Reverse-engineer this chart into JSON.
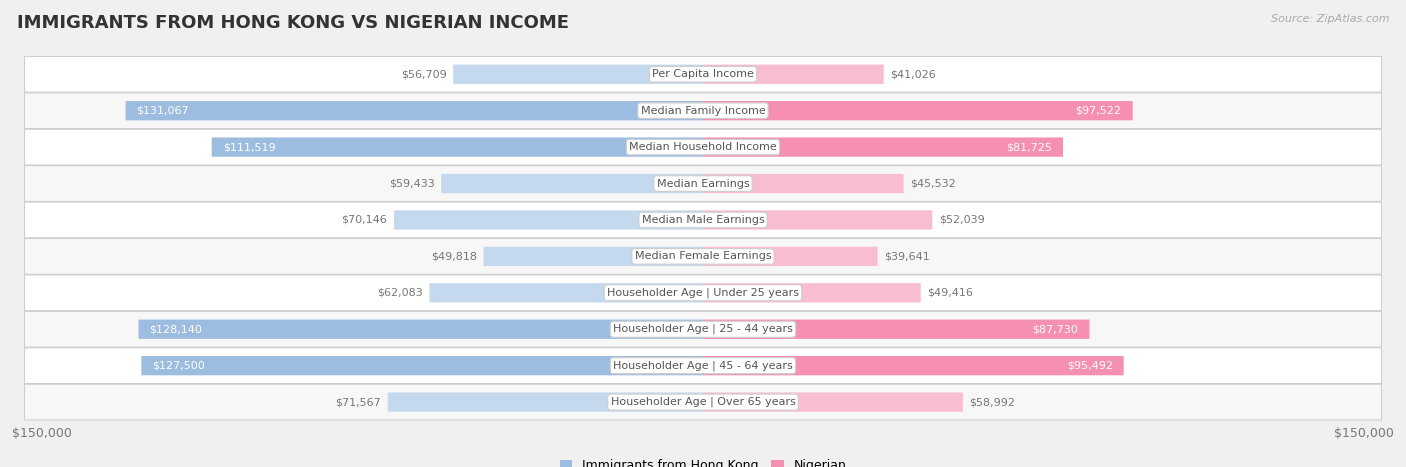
{
  "title": "IMMIGRANTS FROM HONG KONG VS NIGERIAN INCOME",
  "source": "Source: ZipAtlas.com",
  "categories": [
    "Per Capita Income",
    "Median Family Income",
    "Median Household Income",
    "Median Earnings",
    "Median Male Earnings",
    "Median Female Earnings",
    "Householder Age | Under 25 years",
    "Householder Age | 25 - 44 years",
    "Householder Age | 45 - 64 years",
    "Householder Age | Over 65 years"
  ],
  "hk_values": [
    56709,
    131067,
    111519,
    59433,
    70146,
    49818,
    62083,
    128140,
    127500,
    71567
  ],
  "ng_values": [
    41026,
    97522,
    81725,
    45532,
    52039,
    39641,
    49416,
    87730,
    95492,
    58992
  ],
  "hk_labels": [
    "$56,709",
    "$131,067",
    "$111,519",
    "$59,433",
    "$70,146",
    "$49,818",
    "$62,083",
    "$128,140",
    "$127,500",
    "$71,567"
  ],
  "ng_labels": [
    "$41,026",
    "$97,522",
    "$81,725",
    "$45,532",
    "$52,039",
    "$39,641",
    "$49,416",
    "$87,730",
    "$95,492",
    "$58,992"
  ],
  "hk_inside_threshold": 80000,
  "ng_inside_threshold": 60000,
  "hk_color": "#9dbde0",
  "ng_color": "#f590b0",
  "hk_color_light": "#c5d9ee",
  "ng_color_light": "#f9bdd0",
  "bar_height": 0.52,
  "max_val": 150000,
  "bg_color": "#f0f0f0",
  "row_bg_even": "#ffffff",
  "row_bg_odd": "#f7f7f7",
  "label_inside_color": "#ffffff",
  "label_outside_color": "#777777",
  "cat_label_color": "#555555",
  "legend_hk": "Immigrants from Hong Kong",
  "legend_ng": "Nigerian",
  "x_tick_left": "$150,000",
  "x_tick_right": "$150,000",
  "title_fontsize": 13,
  "label_fontsize": 8,
  "cat_fontsize": 8,
  "source_fontsize": 8
}
